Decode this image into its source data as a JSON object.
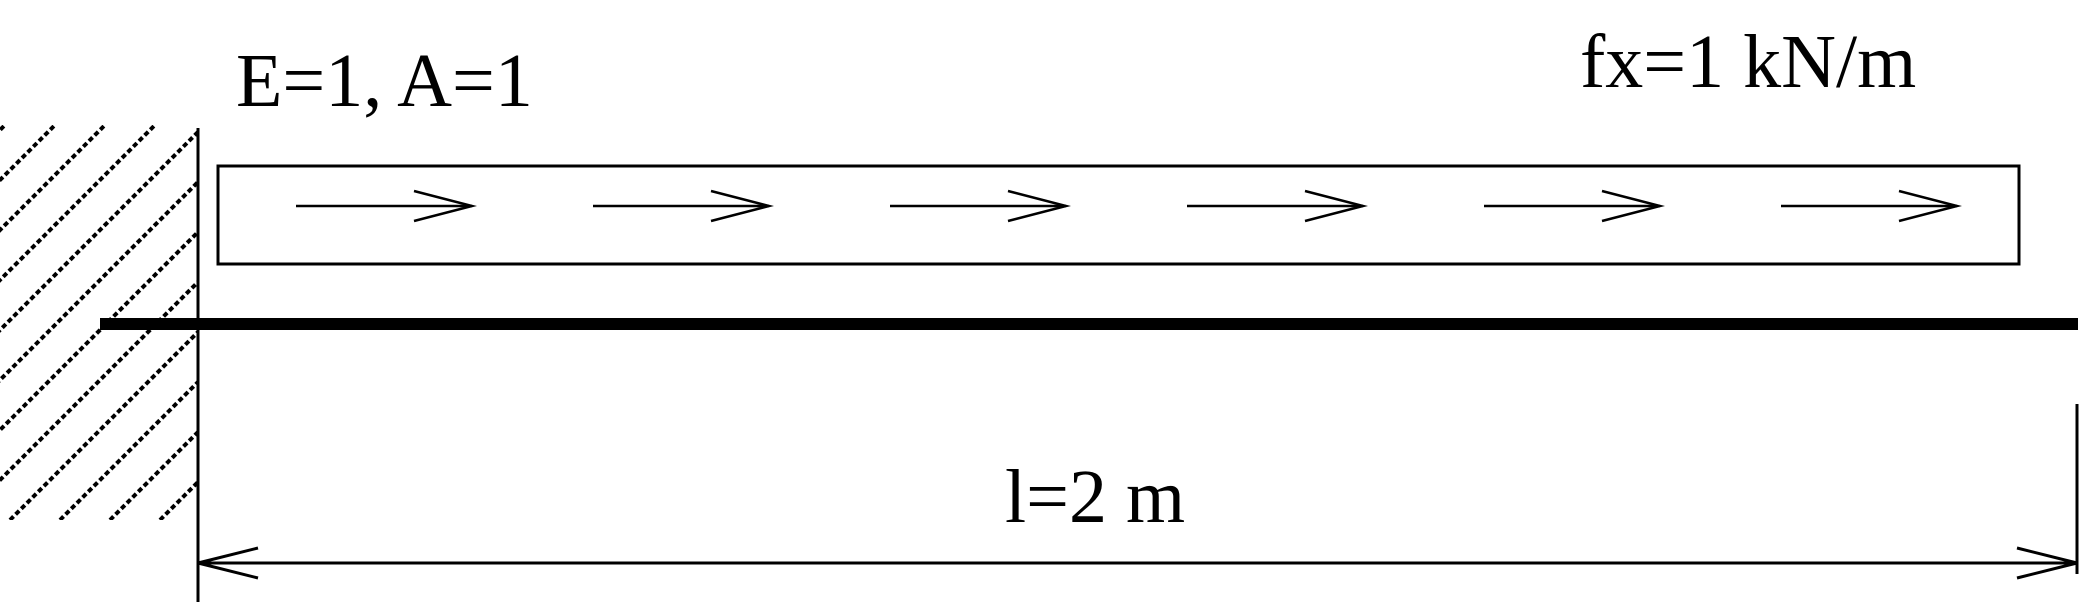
{
  "labels": {
    "material": "E=1, A=1",
    "load": "fx=1 kN/m",
    "length": "l=2 m"
  },
  "load_arrow_count": 6,
  "colors": {
    "line": "#000000",
    "background": "#ffffff"
  }
}
